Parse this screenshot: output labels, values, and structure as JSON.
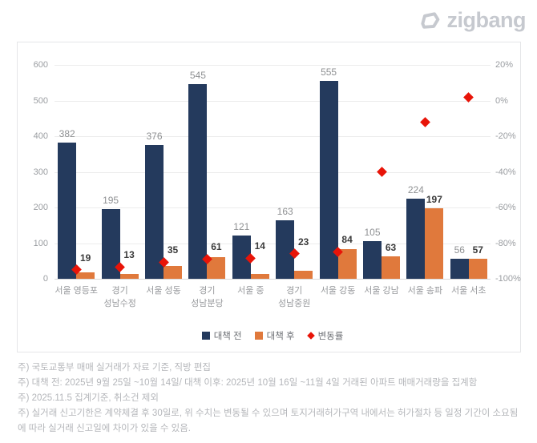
{
  "logo": {
    "text": "zigbang",
    "icon": "zigbang-house-icon",
    "color": "#c6c9cf"
  },
  "chart_data": {
    "type": "bar",
    "categories": [
      "서울 영등포",
      "경기 성남수정",
      "서울 성동",
      "경기 성남분당",
      "서울 중",
      "경기 성남중원",
      "서울 강동",
      "서울 강남",
      "서울 송파",
      "서울 서초"
    ],
    "category_label_lines": [
      [
        "서울 영등포"
      ],
      [
        "경기",
        "성남수정"
      ],
      [
        "서울 성동"
      ],
      [
        "경기",
        "성남분당"
      ],
      [
        "서울 중"
      ],
      [
        "경기",
        "성남중원"
      ],
      [
        "서울 강동"
      ],
      [
        "서울 강남"
      ],
      [
        "서울 송파"
      ],
      [
        "서울 서초"
      ]
    ],
    "series": [
      {
        "name": "대책 전",
        "color": "#243a5d",
        "values": [
          382,
          195,
          376,
          545,
          121,
          163,
          555,
          105,
          224,
          56
        ]
      },
      {
        "name": "대책 후",
        "color": "#e0793c",
        "values": [
          19,
          13,
          35,
          61,
          14,
          23,
          84,
          63,
          197,
          57
        ]
      }
    ],
    "change_series": {
      "name": "변동률",
      "type": "scatter",
      "marker": "diamond",
      "color": "#e81408",
      "values_pct": [
        -95.0,
        -93.3,
        -90.7,
        -88.8,
        -88.4,
        -85.9,
        -84.9,
        -40.0,
        -12.1,
        1.8
      ]
    },
    "left_axis": {
      "min": 0,
      "max": 600,
      "ticks": [
        600,
        500,
        400,
        300,
        200,
        100,
        0
      ]
    },
    "right_axis": {
      "min": -100,
      "max": 20,
      "ticks": [
        "20%",
        "0%",
        "-20%",
        "-40%",
        "-60%",
        "-80%",
        "-100%"
      ]
    },
    "legend": [
      "대책 전",
      "대책 후",
      "변동률"
    ],
    "legend_position": "bottom",
    "grid": "horizontal"
  },
  "footnotes": [
    "주) 국토교통부 매매 실거래가 자료 기준, 직방 편집",
    "주) 대책 전: 2025년 9월 25일 ~10월 14일/ 대책 이후: 2025년 10월 16일 ~11월 4일 거래된 아파트 매매거래량을 집계함",
    "주) 2025.11.5 집계기준, 취소건 제외",
    "주) 실거래 신고기한은 계약체결 후 30일로, 위 수치는 변동될 수 있으며 토지거래허가구역 내에서는 허가절차 등 일정 기간이 소요됨에 따라 실거래 신고일에 차이가 있을 수 있음."
  ]
}
